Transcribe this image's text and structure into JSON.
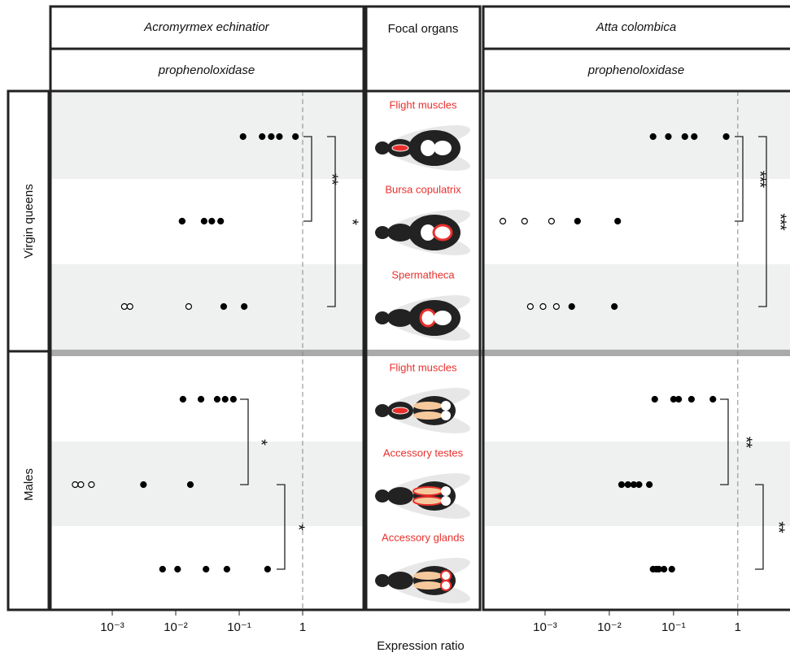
{
  "x_label": "Expression ratio",
  "focal_header": "Focal organs",
  "groups": [
    {
      "label": "Virgin queens",
      "organs": [
        "Flight muscles",
        "Bursa copulatrix",
        "Spermatheca"
      ]
    },
    {
      "label": "Males",
      "organs": [
        "Flight muscles",
        "Accessory testes",
        "Accessory glands"
      ]
    }
  ],
  "chart_data": [
    {
      "type": "scatter",
      "title": "Acromyrmex echinatior",
      "subtitle": "prophenoloxidase",
      "log_x": true,
      "xlim": [
        0.0001,
        10
      ],
      "xticks": [
        {
          "value": 0.001,
          "label": "10⁻³"
        },
        {
          "value": 0.01,
          "label": "10⁻²"
        },
        {
          "value": 0.1,
          "label": "10⁻¹"
        },
        1
      ],
      "vline": 1,
      "color": "#000000",
      "rows": [
        {
          "values": [
            0.115,
            0.23,
            0.32,
            0.43,
            0.77
          ],
          "open": [
            false,
            false,
            false,
            false,
            false
          ]
        },
        {
          "values": [
            0.0126,
            0.0126,
            0.028,
            0.037,
            0.051
          ],
          "open": [
            false,
            false,
            false,
            false,
            false
          ]
        },
        {
          "values": [
            0.00155,
            0.0019,
            0.016,
            0.057,
            0.12
          ],
          "open": [
            true,
            true,
            true,
            false,
            false
          ]
        },
        {
          "values": [
            0.013,
            0.025,
            0.045,
            0.06,
            0.081
          ],
          "open": [
            false,
            false,
            false,
            false,
            false
          ]
        },
        {
          "values": [
            0.00026,
            0.00032,
            0.00047,
            0.0031,
            0.017
          ],
          "open": [
            true,
            true,
            true,
            false,
            false
          ]
        },
        {
          "values": [
            0.0062,
            0.0107,
            0.03,
            0.064,
            0.28
          ],
          "open": [
            false,
            false,
            false,
            false,
            false
          ]
        }
      ],
      "significance": [
        {
          "rows": [
            0,
            1
          ],
          "label": "**"
        },
        {
          "rows": [
            0,
            2
          ],
          "label": "*"
        },
        {
          "rows": [
            3,
            4
          ],
          "label": "*"
        },
        {
          "rows": [
            4,
            5
          ],
          "label": "*"
        }
      ]
    },
    {
      "type": "scatter",
      "title": "Atta colombica",
      "subtitle": "prophenoloxidase",
      "log_x": true,
      "xlim": [
        0.0001,
        6.5
      ],
      "xticks": [
        {
          "value": 0.001,
          "label": "10⁻³"
        },
        {
          "value": 0.01,
          "label": "10⁻²"
        },
        {
          "value": 0.1,
          "label": "10⁻¹"
        },
        1
      ],
      "vline": 1,
      "color": "#000000",
      "rows": [
        {
          "values": [
            0.048,
            0.083,
            0.15,
            0.21,
            0.66
          ],
          "open": [
            false,
            false,
            false,
            false,
            false
          ]
        },
        {
          "values": [
            0.00022,
            0.00048,
            0.00126,
            0.0032,
            0.0135
          ],
          "open": [
            true,
            true,
            true,
            false,
            false
          ]
        },
        {
          "values": [
            0.00059,
            0.00093,
            0.0015,
            0.0026,
            0.012
          ],
          "open": [
            true,
            true,
            true,
            false,
            false
          ]
        },
        {
          "values": [
            0.051,
            0.1,
            0.12,
            0.19,
            0.41
          ],
          "open": [
            false,
            false,
            false,
            false,
            false
          ]
        },
        {
          "values": [
            0.0155,
            0.0195,
            0.024,
            0.029,
            0.042
          ],
          "open": [
            false,
            false,
            false,
            false,
            false
          ]
        },
        {
          "values": [
            0.048,
            0.054,
            0.059,
            0.071,
            0.094
          ],
          "open": [
            false,
            false,
            false,
            false,
            false
          ]
        }
      ],
      "significance": [
        {
          "rows": [
            0,
            1
          ],
          "label": "***"
        },
        {
          "rows": [
            0,
            2
          ],
          "label": "***"
        },
        {
          "rows": [
            3,
            4
          ],
          "label": "**"
        },
        {
          "rows": [
            4,
            5
          ],
          "label": "**"
        }
      ]
    }
  ]
}
